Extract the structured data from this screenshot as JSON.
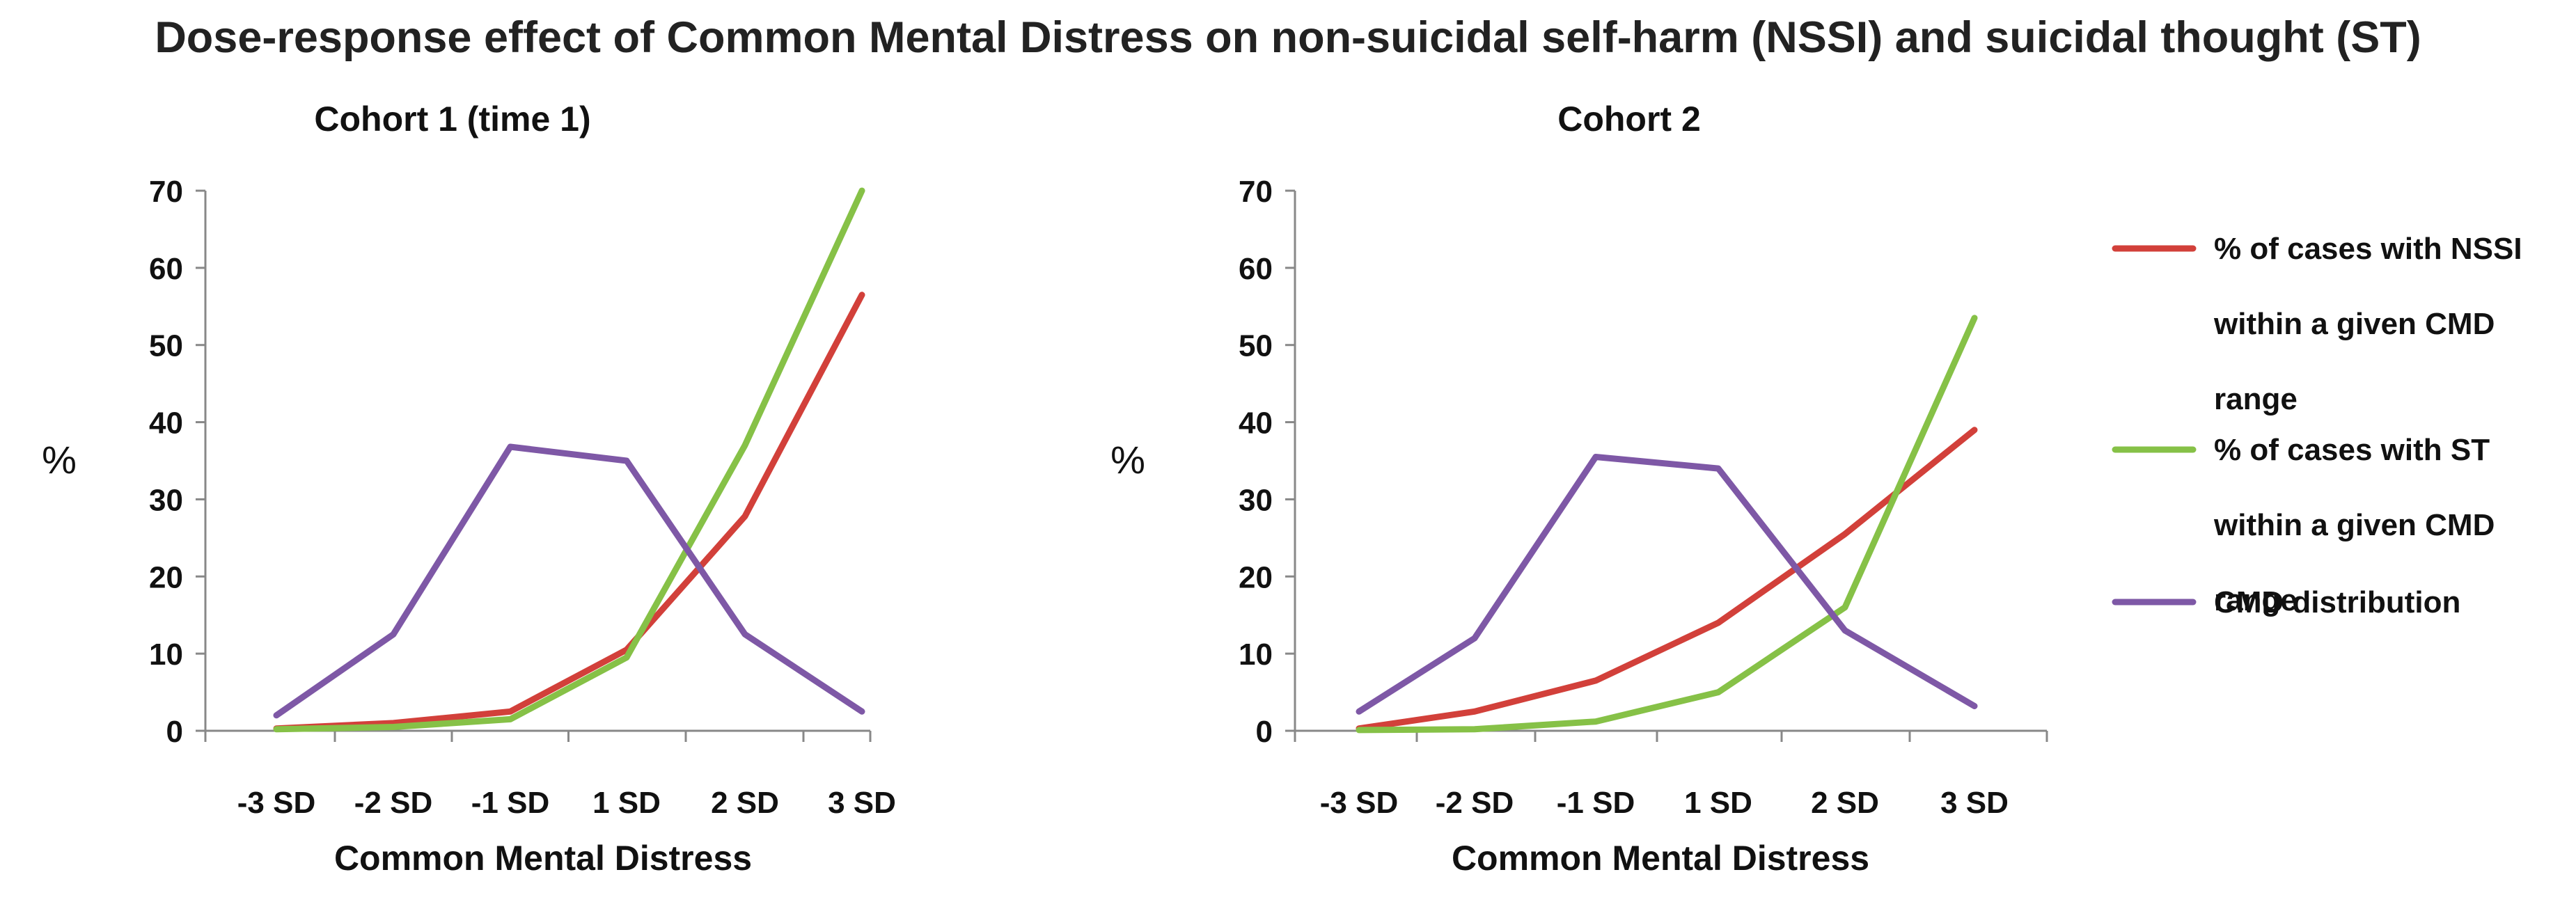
{
  "title": "Dose-response effect of Common Mental Distress on non-suicidal self-harm (NSSI) and suicidal thought (ST)",
  "legend": {
    "items": [
      {
        "lines": [
          "% of cases with NSSI",
          "within a given CMD",
          "range"
        ],
        "color": "#d2403a"
      },
      {
        "lines": [
          "% of cases with ST",
          "within a given CMD",
          "range"
        ],
        "color": "#86c147"
      },
      {
        "lines": [
          "CMD distribution"
        ],
        "color": "#7e58a6"
      }
    ]
  },
  "chart_data": [
    {
      "type": "line",
      "title": "Cohort 1 (time 1)",
      "xlabel": "Common Mental Distress",
      "ylabel": "%",
      "ylim": [
        0,
        70
      ],
      "yticks": [
        "0",
        "10",
        "20",
        "30",
        "40",
        "50",
        "60",
        "70"
      ],
      "categories": [
        "-3 SD",
        "-2 SD",
        "-1 SD",
        "1 SD",
        "2 SD",
        "3 SD"
      ],
      "series": [
        {
          "name": "% of cases with NSSI within a given CMD range",
          "color": "#d2403a",
          "values": [
            0.3,
            1.0,
            2.5,
            10.5,
            27.8,
            56.5
          ]
        },
        {
          "name": "% of cases with ST within a given CMD range",
          "color": "#86c147",
          "values": [
            0.2,
            0.5,
            1.5,
            9.5,
            37.0,
            70.0
          ]
        },
        {
          "name": "CMD distribution",
          "color": "#7e58a6",
          "values": [
            2.0,
            12.5,
            36.8,
            35.0,
            12.5,
            2.5
          ]
        }
      ]
    },
    {
      "type": "line",
      "title": "Cohort 2",
      "xlabel": "Common Mental Distress",
      "ylabel": "%",
      "ylim": [
        0,
        70
      ],
      "yticks": [
        "0",
        "10",
        "20",
        "30",
        "40",
        "50",
        "60",
        "70"
      ],
      "categories": [
        "-3 SD",
        "-2 SD",
        "-1 SD",
        "1 SD",
        "2 SD",
        "3 SD"
      ],
      "series": [
        {
          "name": "% of cases with NSSI within a given CMD range",
          "color": "#d2403a",
          "values": [
            0.3,
            2.5,
            6.5,
            14.0,
            25.5,
            39.0
          ]
        },
        {
          "name": "% of cases with ST within a given CMD range",
          "color": "#86c147",
          "values": [
            0.1,
            0.2,
            1.2,
            5.0,
            16.0,
            53.5
          ]
        },
        {
          "name": "CMD distribution",
          "color": "#7e58a6",
          "values": [
            2.5,
            12.0,
            35.5,
            34.0,
            13.0,
            3.2
          ]
        }
      ]
    }
  ]
}
